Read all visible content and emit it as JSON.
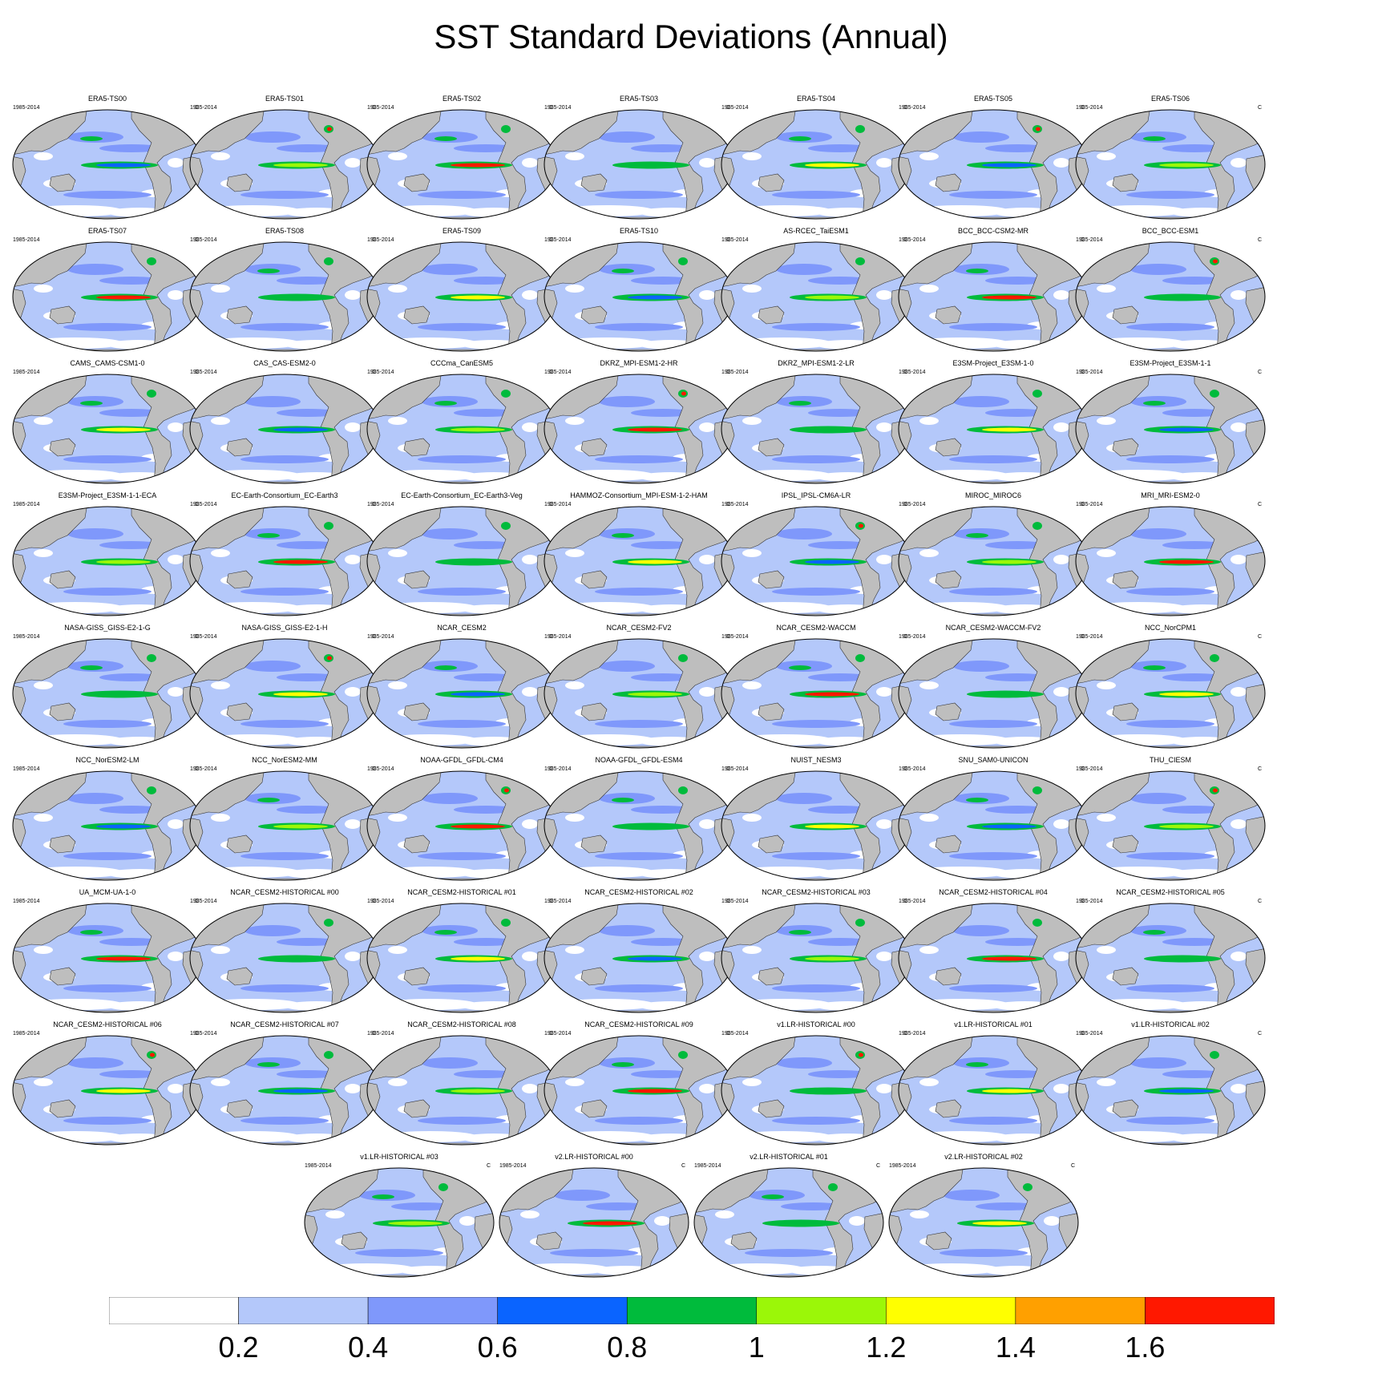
{
  "title": "SST Standard Deviations (Annual)",
  "period": "1985-2014",
  "unit": "C",
  "panels": [
    "ERA5-TS00",
    "ERA5-TS01",
    "ERA5-TS02",
    "ERA5-TS03",
    "ERA5-TS04",
    "ERA5-TS05",
    "ERA5-TS06",
    "ERA5-TS07",
    "ERA5-TS08",
    "ERA5-TS09",
    "ERA5-TS10",
    "AS-RCEC_TaiESM1",
    "BCC_BCC-CSM2-MR",
    "BCC_BCC-ESM1",
    "CAMS_CAMS-CSM1-0",
    "CAS_CAS-ESM2-0",
    "CCCma_CanESM5",
    "DKRZ_MPI-ESM1-2-HR",
    "DKRZ_MPI-ESM1-2-LR",
    "E3SM-Project_E3SM-1-0",
    "E3SM-Project_E3SM-1-1",
    "E3SM-Project_E3SM-1-1-ECA",
    "EC-Earth-Consortium_EC-Earth3",
    "EC-Earth-Consortium_EC-Earth3-Veg",
    "HAMMOZ-Consortium_MPI-ESM-1-2-HAM",
    "IPSL_IPSL-CM6A-LR",
    "MIROC_MIROC6",
    "MRI_MRI-ESM2-0",
    "NASA-GISS_GISS-E2-1-G",
    "NASA-GISS_GISS-E2-1-H",
    "NCAR_CESM2",
    "NCAR_CESM2-FV2",
    "NCAR_CESM2-WACCM",
    "NCAR_CESM2-WACCM-FV2",
    "NCC_NorCPM1",
    "NCC_NorESM2-LM",
    "NCC_NorESM2-MM",
    "NOAA-GFDL_GFDL-CM4",
    "NOAA-GFDL_GFDL-ESM4",
    "NUIST_NESM3",
    "SNU_SAM0-UNICON",
    "THU_CIESM",
    "UA_MCM-UA-1-0",
    "NCAR_CESM2-HISTORICAL  #00",
    "NCAR_CESM2-HISTORICAL  #01",
    "NCAR_CESM2-HISTORICAL  #02",
    "NCAR_CESM2-HISTORICAL  #03",
    "NCAR_CESM2-HISTORICAL  #04",
    "NCAR_CESM2-HISTORICAL  #05",
    "NCAR_CESM2-HISTORICAL  #06",
    "NCAR_CESM2-HISTORICAL  #07",
    "NCAR_CESM2-HISTORICAL  #08",
    "NCAR_CESM2-HISTORICAL  #09",
    "v1.LR-HISTORICAL  #00",
    "v1.LR-HISTORICAL  #01",
    "v1.LR-HISTORICAL  #02",
    "v1.LR-HISTORICAL  #03",
    "v2.LR-HISTORICAL  #00",
    "v2.LR-HISTORICAL  #01",
    "v2.LR-HISTORICAL  #02"
  ],
  "colorbar": {
    "colors": [
      "#ffffff",
      "#b4c8fa",
      "#7f98fb",
      "#0a64ff",
      "#00bb3c",
      "#9bf708",
      "#ffff00",
      "#ffa000",
      "#ff1800"
    ],
    "labels": [
      "0.2",
      "0.4",
      "0.6",
      "0.8",
      "1",
      "1.2",
      "1.4",
      "1.6"
    ]
  },
  "colors": {
    "ocean": "#b4c8fa",
    "land": "#bebebe"
  }
}
